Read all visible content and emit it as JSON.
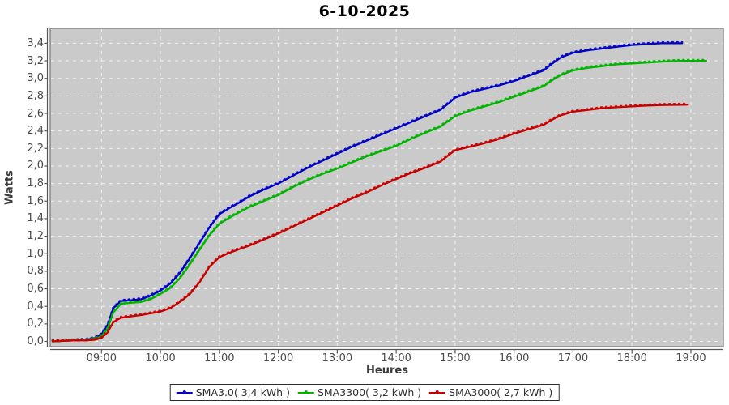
{
  "chart_data": {
    "type": "line",
    "title": "6-10-2025",
    "xlabel": "Heures",
    "ylabel": "Watts",
    "legend_position": "bottom",
    "grid": "white dashed on gray plot background",
    "plot_bg": "#cacaca",
    "grid_color": "#f4f4f4",
    "axis_color": "#555555",
    "tick_label_color": "#4a4a4a",
    "x_ticks": [
      "09:00",
      "10:00",
      "11:00",
      "12:00",
      "13:00",
      "14:00",
      "15:00",
      "16:00",
      "17:00",
      "18:00",
      "19:00"
    ],
    "x_tick_hours": [
      9,
      10,
      11,
      12,
      13,
      14,
      15,
      16,
      17,
      18,
      19
    ],
    "y_ticks": [
      "0,0",
      "0,2",
      "0,4",
      "0,6",
      "0,8",
      "1,0",
      "1,2",
      "1,4",
      "1,6",
      "1,8",
      "2,0",
      "2,2",
      "2,4",
      "2,6",
      "2,8",
      "3,0",
      "3,2",
      "3,4"
    ],
    "y_tick_values": [
      0,
      0.2,
      0.4,
      0.6,
      0.8,
      1.0,
      1.2,
      1.4,
      1.6,
      1.8,
      2.0,
      2.2,
      2.4,
      2.6,
      2.8,
      3.0,
      3.2,
      3.4
    ],
    "ylim": [
      0,
      3.4
    ],
    "axis_range": {
      "x": [
        8.13,
        19.55
      ],
      "y": [
        -0.06,
        3.57
      ]
    },
    "series": [
      {
        "name": "SMA3.0( 3,4 kWh )",
        "color": "#0000c8",
        "final_kwh": "3,4",
        "x": [
          8.17,
          8.3,
          8.5,
          8.75,
          8.9,
          9.0,
          9.1,
          9.2,
          9.33,
          9.5,
          9.67,
          9.83,
          10.0,
          10.17,
          10.33,
          10.5,
          10.67,
          10.83,
          11.0,
          11.17,
          11.33,
          11.5,
          11.75,
          12.0,
          12.25,
          12.5,
          12.75,
          13.0,
          13.25,
          13.5,
          13.75,
          14.0,
          14.25,
          14.5,
          14.75,
          14.9,
          15.0,
          15.25,
          15.5,
          15.75,
          16.0,
          16.25,
          16.5,
          16.65,
          16.8,
          17.0,
          17.25,
          17.5,
          17.75,
          18.0,
          18.25,
          18.5,
          18.85
        ],
        "y": [
          0,
          0.005,
          0.01,
          0.02,
          0.04,
          0.08,
          0.18,
          0.38,
          0.46,
          0.47,
          0.48,
          0.52,
          0.58,
          0.66,
          0.78,
          0.95,
          1.13,
          1.3,
          1.45,
          1.52,
          1.58,
          1.65,
          1.73,
          1.8,
          1.89,
          1.98,
          2.06,
          2.14,
          2.22,
          2.29,
          2.36,
          2.43,
          2.5,
          2.57,
          2.64,
          2.72,
          2.78,
          2.84,
          2.88,
          2.92,
          2.97,
          3.03,
          3.09,
          3.17,
          3.24,
          3.29,
          3.32,
          3.34,
          3.36,
          3.38,
          3.39,
          3.4,
          3.4
        ]
      },
      {
        "name": "SMA3300( 3,2 kWh )",
        "color": "#00b400",
        "final_kwh": "3,2",
        "x": [
          8.17,
          8.3,
          8.5,
          8.75,
          8.9,
          9.0,
          9.1,
          9.2,
          9.33,
          9.5,
          9.67,
          9.83,
          10.0,
          10.17,
          10.33,
          10.5,
          10.67,
          10.83,
          11.0,
          11.17,
          11.33,
          11.5,
          11.75,
          12.0,
          12.25,
          12.5,
          12.75,
          13.0,
          13.25,
          13.5,
          13.75,
          14.0,
          14.25,
          14.5,
          14.75,
          14.9,
          15.0,
          15.25,
          15.5,
          15.75,
          16.0,
          16.25,
          16.5,
          16.65,
          16.8,
          17.0,
          17.25,
          17.5,
          17.75,
          18.0,
          18.25,
          18.5,
          18.85,
          19.26
        ],
        "y": [
          0,
          0.005,
          0.01,
          0.015,
          0.03,
          0.06,
          0.14,
          0.33,
          0.43,
          0.44,
          0.45,
          0.48,
          0.54,
          0.61,
          0.72,
          0.88,
          1.05,
          1.21,
          1.34,
          1.41,
          1.47,
          1.53,
          1.6,
          1.67,
          1.76,
          1.84,
          1.91,
          1.97,
          2.04,
          2.11,
          2.17,
          2.23,
          2.31,
          2.38,
          2.45,
          2.52,
          2.57,
          2.63,
          2.68,
          2.73,
          2.79,
          2.85,
          2.91,
          2.98,
          3.04,
          3.09,
          3.12,
          3.14,
          3.16,
          3.17,
          3.18,
          3.19,
          3.2,
          3.2
        ]
      },
      {
        "name": "SMA3000( 2,7 kWh )",
        "color": "#c80000",
        "final_kwh": "2,7",
        "x": [
          8.17,
          8.3,
          8.5,
          8.75,
          8.9,
          9.0,
          9.1,
          9.2,
          9.33,
          9.5,
          9.67,
          9.83,
          10.0,
          10.17,
          10.33,
          10.5,
          10.67,
          10.83,
          11.0,
          11.17,
          11.33,
          11.5,
          11.75,
          12.0,
          12.25,
          12.5,
          12.75,
          13.0,
          13.25,
          13.5,
          13.75,
          14.0,
          14.25,
          14.5,
          14.75,
          14.9,
          15.0,
          15.25,
          15.5,
          15.75,
          16.0,
          16.25,
          16.5,
          16.65,
          16.8,
          17.0,
          17.25,
          17.5,
          17.75,
          18.0,
          18.25,
          18.5,
          18.95
        ],
        "y": [
          0,
          0.005,
          0.01,
          0.01,
          0.02,
          0.04,
          0.1,
          0.22,
          0.27,
          0.285,
          0.3,
          0.32,
          0.34,
          0.38,
          0.45,
          0.54,
          0.68,
          0.85,
          0.96,
          1.01,
          1.05,
          1.09,
          1.16,
          1.23,
          1.31,
          1.39,
          1.47,
          1.55,
          1.63,
          1.7,
          1.78,
          1.85,
          1.92,
          1.98,
          2.05,
          2.13,
          2.18,
          2.22,
          2.26,
          2.31,
          2.37,
          2.42,
          2.47,
          2.53,
          2.58,
          2.62,
          2.64,
          2.66,
          2.67,
          2.68,
          2.69,
          2.695,
          2.7
        ]
      }
    ]
  }
}
